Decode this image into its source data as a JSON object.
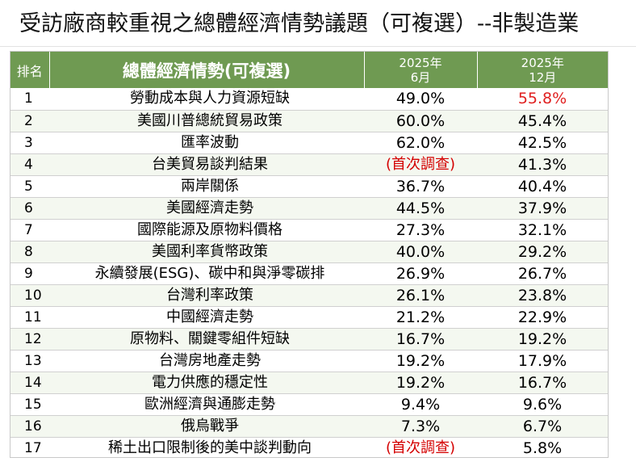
{
  "title": "受訪廠商較重視之總體經濟情勢議題（可複選）--非製造業",
  "header": {
    "rank": "排名",
    "issue": "總體經濟情勢(可複選)",
    "col_jun": {
      "year": "2025年",
      "month": "6月"
    },
    "col_dec": {
      "year": "2025年",
      "month": "12月"
    }
  },
  "colors": {
    "header_bg": "#6f9a52",
    "header_text": "#ffffff",
    "alt_row_bg": "#f4f8f0",
    "first_survey_text": "#d40000",
    "highlight_value": "#e02020"
  },
  "rows": [
    {
      "rank": "1",
      "issue": "勞動成本與人力資源短缺",
      "jun": "49.0%",
      "dec": "55.8%"
    },
    {
      "rank": "2",
      "issue": "美國川普總統貿易政策",
      "jun": "60.0%",
      "dec": "45.4%"
    },
    {
      "rank": "3",
      "issue": "匯率波動",
      "jun": "62.0%",
      "dec": "42.5%"
    },
    {
      "rank": "4",
      "issue": "台美貿易談判結果",
      "jun": "(首次調查)",
      "dec": "41.3%"
    },
    {
      "rank": "5",
      "issue": "兩岸關係",
      "jun": "36.7%",
      "dec": "40.4%"
    },
    {
      "rank": "6",
      "issue": "美國經濟走勢",
      "jun": "44.5%",
      "dec": "37.9%"
    },
    {
      "rank": "7",
      "issue": "國際能源及原物料價格",
      "jun": "27.3%",
      "dec": "32.1%"
    },
    {
      "rank": "8",
      "issue": "美國利率貨幣政策",
      "jun": "40.0%",
      "dec": "29.2%"
    },
    {
      "rank": "9",
      "issue": "永續發展(ESG)、碳中和與淨零碳排",
      "jun": "26.9%",
      "dec": "26.7%"
    },
    {
      "rank": "10",
      "issue": "台灣利率政策",
      "jun": "26.1%",
      "dec": "23.8%"
    },
    {
      "rank": "11",
      "issue": "中國經濟走勢",
      "jun": "21.2%",
      "dec": "22.9%"
    },
    {
      "rank": "12",
      "issue": "原物料、關鍵零組件短缺",
      "jun": "16.7%",
      "dec": "19.2%"
    },
    {
      "rank": "13",
      "issue": "台灣房地產走勢",
      "jun": "19.2%",
      "dec": "17.9%"
    },
    {
      "rank": "14",
      "issue": "電力供應的穩定性",
      "jun": "19.2%",
      "dec": "16.7%"
    },
    {
      "rank": "15",
      "issue": "歐洲經濟與通膨走勢",
      "jun": "9.4%",
      "dec": "9.6%"
    },
    {
      "rank": "16",
      "issue": "俄烏戰爭",
      "jun": "7.3%",
      "dec": "6.7%"
    },
    {
      "rank": "17",
      "issue": "稀土出口限制後的美中談判動向",
      "jun": "(首次調查)",
      "dec": "5.8%"
    }
  ]
}
